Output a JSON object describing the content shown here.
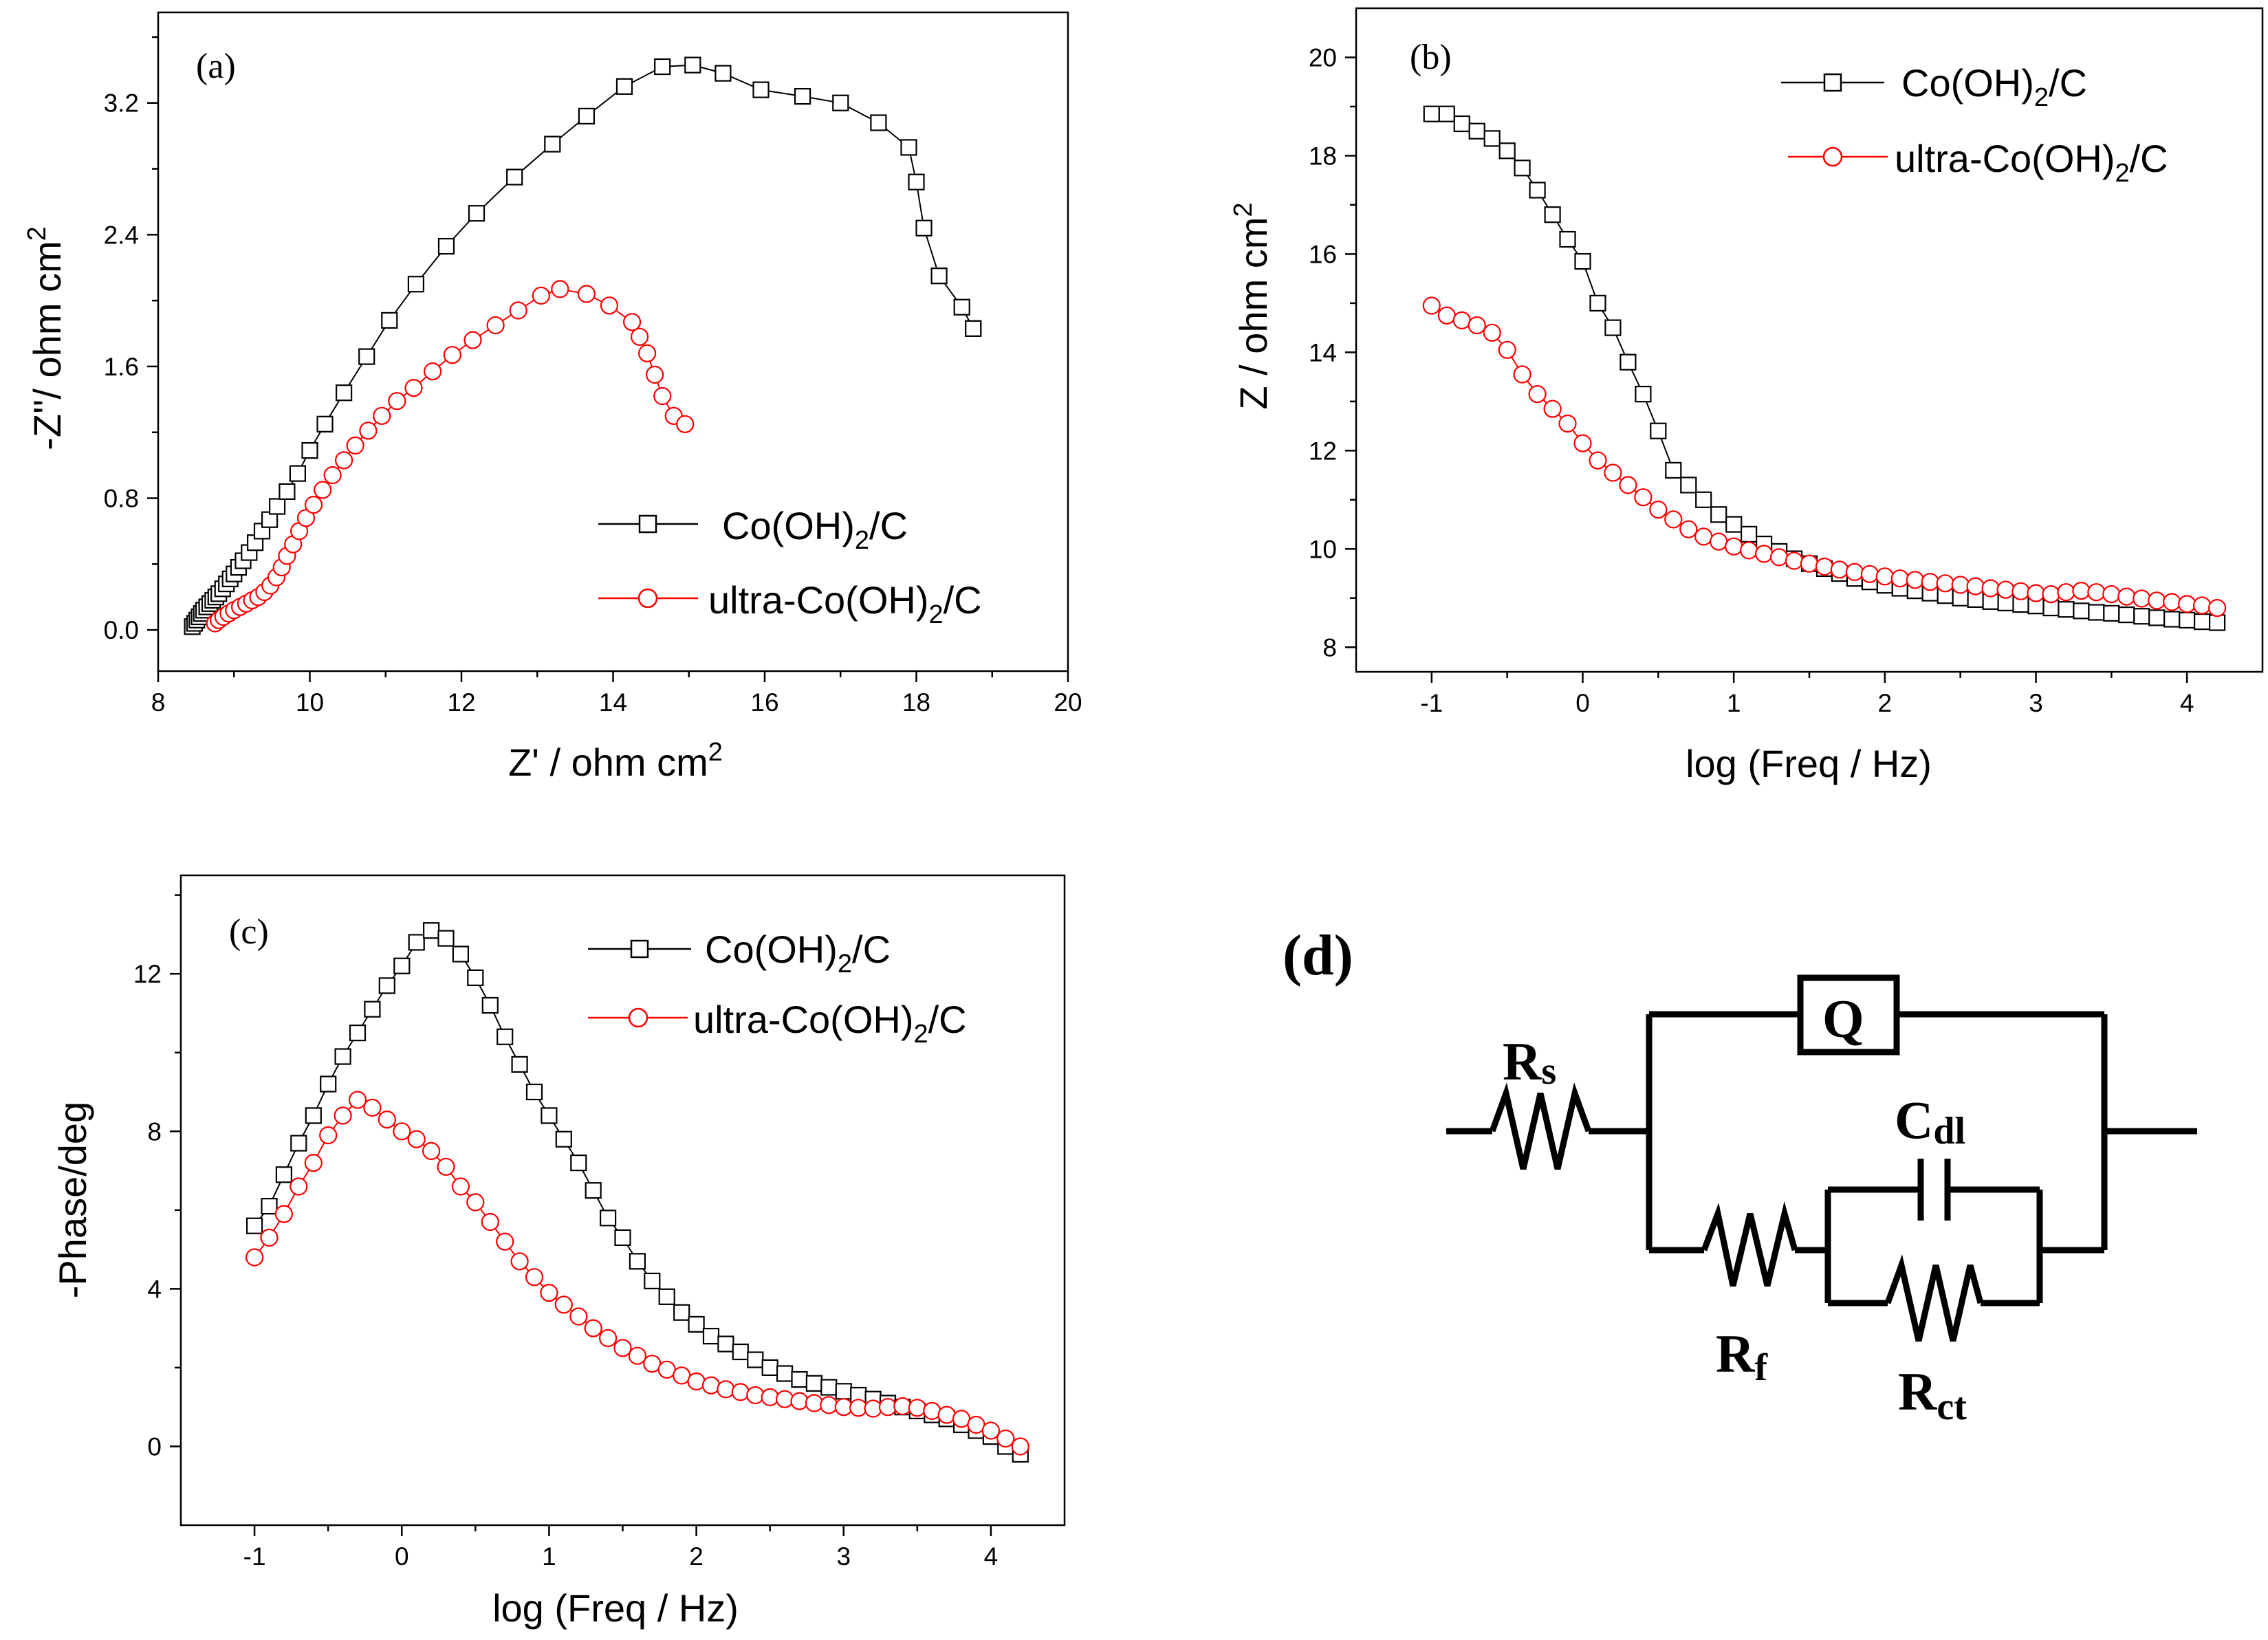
{
  "chart_data": [
    {
      "type": "scatter",
      "panel": "(a)",
      "xlabel": "Z' / ohm cm^2",
      "ylabel": "-Z''/ ohm cm^2",
      "xlim": [
        8,
        20
      ],
      "ylim": [
        -0.25,
        3.75
      ],
      "xticks": [
        8,
        10,
        12,
        14,
        16,
        18,
        20
      ],
      "yticks": [
        0.0,
        0.8,
        1.6,
        2.4,
        3.2
      ],
      "ytick_labels": [
        "0.0",
        "0.8",
        "1.6",
        "2.4",
        "3.2"
      ],
      "legend_position": "bottom-right",
      "series": [
        {
          "name": "Co(OH)2/C",
          "color": "#000000",
          "marker": "square",
          "x": [
            8.45,
            8.48,
            8.51,
            8.54,
            8.57,
            8.6,
            8.64,
            8.68,
            8.72,
            8.76,
            8.8,
            8.85,
            8.9,
            8.95,
            9.0,
            9.06,
            9.12,
            9.2,
            9.28,
            9.37,
            9.47,
            9.57,
            9.7,
            9.84,
            10.0,
            10.2,
            10.45,
            10.75,
            11.05,
            11.4,
            11.8,
            12.2,
            12.7,
            13.2,
            13.65,
            14.15,
            14.65,
            15.05,
            15.45,
            15.95,
            16.5,
            17.0,
            17.5,
            17.9,
            18.0,
            18.1,
            18.3,
            18.6,
            18.75,
            18.75
          ],
          "y": [
            0.02,
            0.04,
            0.06,
            0.08,
            0.1,
            0.12,
            0.14,
            0.16,
            0.18,
            0.2,
            0.22,
            0.25,
            0.28,
            0.31,
            0.34,
            0.38,
            0.42,
            0.47,
            0.53,
            0.6,
            0.67,
            0.75,
            0.84,
            0.95,
            1.09,
            1.25,
            1.44,
            1.66,
            1.88,
            2.1,
            2.33,
            2.53,
            2.75,
            2.95,
            3.12,
            3.3,
            3.42,
            3.43,
            3.38,
            3.28,
            3.24,
            3.2,
            3.08,
            2.93,
            2.72,
            2.44,
            2.15,
            1.96,
            1.83,
            1.83
          ]
        },
        {
          "name": "ultra-Co(OH)2/C",
          "color": "#ff0000",
          "marker": "circle",
          "x": [
            8.75,
            8.8,
            8.86,
            8.93,
            9.0,
            9.08,
            9.16,
            9.24,
            9.32,
            9.4,
            9.48,
            9.56,
            9.63,
            9.7,
            9.78,
            9.86,
            9.95,
            10.05,
            10.17,
            10.3,
            10.45,
            10.6,
            10.77,
            10.95,
            11.15,
            11.37,
            11.62,
            11.88,
            12.15,
            12.45,
            12.75,
            13.05,
            13.3,
            13.65,
            13.95,
            14.25,
            14.35,
            14.45,
            14.55,
            14.65,
            14.8,
            14.95
          ],
          "y": [
            0.04,
            0.06,
            0.08,
            0.1,
            0.12,
            0.14,
            0.16,
            0.18,
            0.2,
            0.23,
            0.27,
            0.32,
            0.38,
            0.45,
            0.52,
            0.6,
            0.68,
            0.76,
            0.85,
            0.94,
            1.03,
            1.12,
            1.21,
            1.3,
            1.39,
            1.47,
            1.57,
            1.67,
            1.76,
            1.85,
            1.94,
            2.03,
            2.07,
            2.04,
            1.97,
            1.87,
            1.78,
            1.68,
            1.55,
            1.42,
            1.3,
            1.25
          ]
        }
      ]
    },
    {
      "type": "scatter",
      "panel": "(b)",
      "xlabel": "log (Freq / Hz)",
      "ylabel": "Z / ohm cm^2",
      "xlim": [
        -1.5,
        4.5
      ],
      "ylim": [
        7.5,
        21
      ],
      "xticks": [
        -1,
        0,
        1,
        2,
        3,
        4
      ],
      "yticks": [
        8,
        10,
        12,
        14,
        16,
        18,
        20
      ],
      "legend_position": "top-right",
      "series": [
        {
          "name": "Co(OH)2/C",
          "color": "#000000",
          "marker": "square",
          "x": [
            -1.0,
            -0.9,
            -0.8,
            -0.7,
            -0.6,
            -0.5,
            -0.4,
            -0.3,
            -0.2,
            -0.1,
            0.0,
            0.1,
            0.2,
            0.3,
            0.4,
            0.5,
            0.6,
            0.7,
            0.8,
            0.9,
            1.0,
            1.1,
            1.2,
            1.3,
            1.4,
            1.5,
            1.6,
            1.7,
            1.8,
            1.9,
            2.0,
            2.1,
            2.2,
            2.3,
            2.4,
            2.5,
            2.6,
            2.7,
            2.8,
            2.9,
            3.0,
            3.1,
            3.2,
            3.3,
            3.4,
            3.5,
            3.6,
            3.7,
            3.8,
            3.9,
            4.0,
            4.1,
            4.2
          ],
          "y": [
            18.85,
            18.85,
            18.65,
            18.5,
            18.35,
            18.1,
            17.75,
            17.3,
            16.8,
            16.3,
            15.85,
            15.0,
            14.5,
            13.8,
            13.15,
            12.4,
            11.6,
            11.3,
            11.0,
            10.7,
            10.5,
            10.3,
            10.1,
            9.95,
            9.8,
            9.7,
            9.6,
            9.5,
            9.4,
            9.33,
            9.26,
            9.2,
            9.15,
            9.1,
            9.05,
            9.0,
            8.97,
            8.93,
            8.9,
            8.87,
            8.84,
            8.8,
            8.77,
            8.74,
            8.71,
            8.69,
            8.66,
            8.63,
            8.6,
            8.57,
            8.55,
            8.52,
            8.5
          ]
        },
        {
          "name": "ultra-Co(OH)2/C",
          "color": "#ff0000",
          "marker": "circle",
          "x": [
            -1.0,
            -0.9,
            -0.8,
            -0.7,
            -0.6,
            -0.5,
            -0.4,
            -0.3,
            -0.2,
            -0.1,
            0.0,
            0.1,
            0.2,
            0.3,
            0.4,
            0.5,
            0.6,
            0.7,
            0.8,
            0.9,
            1.0,
            1.1,
            1.2,
            1.3,
            1.4,
            1.5,
            1.6,
            1.7,
            1.8,
            1.9,
            2.0,
            2.1,
            2.2,
            2.3,
            2.4,
            2.5,
            2.6,
            2.7,
            2.8,
            2.9,
            3.0,
            3.1,
            3.2,
            3.3,
            3.4,
            3.5,
            3.6,
            3.7,
            3.8,
            3.9,
            4.0,
            4.1,
            4.2
          ],
          "y": [
            14.95,
            14.75,
            14.65,
            14.55,
            14.4,
            14.05,
            13.55,
            13.15,
            12.85,
            12.55,
            12.15,
            11.8,
            11.55,
            11.3,
            11.05,
            10.8,
            10.6,
            10.4,
            10.25,
            10.15,
            10.05,
            9.97,
            9.9,
            9.83,
            9.76,
            9.7,
            9.64,
            9.58,
            9.53,
            9.49,
            9.44,
            9.4,
            9.37,
            9.33,
            9.3,
            9.27,
            9.24,
            9.2,
            9.17,
            9.14,
            9.1,
            9.08,
            9.12,
            9.15,
            9.12,
            9.08,
            9.03,
            8.99,
            8.95,
            8.92,
            8.88,
            8.85,
            8.8
          ]
        }
      ]
    },
    {
      "type": "scatter",
      "panel": "(c)",
      "xlabel": "log (Freq / Hz)",
      "ylabel": "-Phase/deg",
      "xlim": [
        -1.5,
        4.5
      ],
      "ylim": [
        -2,
        14.5
      ],
      "xticks": [
        -1,
        0,
        1,
        2,
        3,
        4
      ],
      "yticks": [
        0,
        4,
        8,
        12
      ],
      "legend_position": "top-right",
      "series": [
        {
          "name": "Co(OH)2/C",
          "color": "#000000",
          "marker": "square",
          "x": [
            -1.0,
            -0.9,
            -0.8,
            -0.7,
            -0.6,
            -0.5,
            -0.4,
            -0.3,
            -0.2,
            -0.1,
            0.0,
            0.1,
            0.2,
            0.3,
            0.4,
            0.5,
            0.6,
            0.7,
            0.8,
            0.9,
            1.0,
            1.1,
            1.2,
            1.3,
            1.4,
            1.5,
            1.6,
            1.7,
            1.8,
            1.9,
            2.0,
            2.1,
            2.2,
            2.3,
            2.4,
            2.5,
            2.6,
            2.7,
            2.8,
            2.9,
            3.0,
            3.1,
            3.2,
            3.3,
            3.4,
            3.5,
            3.6,
            3.7,
            3.8,
            3.9,
            4.0,
            4.1,
            4.2
          ],
          "y": [
            5.6,
            6.1,
            6.9,
            7.7,
            8.4,
            9.2,
            9.9,
            10.5,
            11.1,
            11.7,
            12.2,
            12.8,
            13.1,
            12.9,
            12.5,
            11.9,
            11.2,
            10.4,
            9.7,
            9.0,
            8.4,
            7.8,
            7.2,
            6.5,
            5.8,
            5.3,
            4.7,
            4.2,
            3.8,
            3.4,
            3.1,
            2.8,
            2.6,
            2.4,
            2.2,
            2.0,
            1.85,
            1.7,
            1.6,
            1.5,
            1.4,
            1.3,
            1.2,
            1.1,
            1.0,
            0.9,
            0.8,
            0.7,
            0.55,
            0.4,
            0.25,
            0.0,
            -0.2
          ]
        },
        {
          "name": "ultra-Co(OH)2/C",
          "color": "#ff0000",
          "marker": "circle",
          "x": [
            -1.0,
            -0.9,
            -0.8,
            -0.7,
            -0.6,
            -0.5,
            -0.4,
            -0.3,
            -0.2,
            -0.1,
            0.0,
            0.1,
            0.2,
            0.3,
            0.4,
            0.5,
            0.6,
            0.7,
            0.8,
            0.9,
            1.0,
            1.1,
            1.2,
            1.3,
            1.4,
            1.5,
            1.6,
            1.7,
            1.8,
            1.9,
            2.0,
            2.1,
            2.2,
            2.3,
            2.4,
            2.5,
            2.6,
            2.7,
            2.8,
            2.9,
            3.0,
            3.1,
            3.2,
            3.3,
            3.4,
            3.5,
            3.6,
            3.7,
            3.8,
            3.9,
            4.0,
            4.1,
            4.2
          ],
          "y": [
            4.8,
            5.3,
            5.9,
            6.6,
            7.2,
            7.9,
            8.4,
            8.8,
            8.6,
            8.3,
            8.0,
            7.8,
            7.5,
            7.1,
            6.6,
            6.2,
            5.7,
            5.2,
            4.7,
            4.3,
            3.9,
            3.6,
            3.3,
            3.0,
            2.75,
            2.5,
            2.3,
            2.1,
            1.95,
            1.8,
            1.65,
            1.55,
            1.45,
            1.38,
            1.3,
            1.25,
            1.2,
            1.15,
            1.1,
            1.05,
            1.0,
            0.98,
            0.96,
            1.0,
            1.02,
            0.98,
            0.9,
            0.8,
            0.7,
            0.55,
            0.4,
            0.2,
            0.0
          ]
        }
      ]
    }
  ],
  "circuit": {
    "panel": "(d)",
    "rs_main": "R",
    "rs_sub": "s",
    "q_label": "Q",
    "cdl_main": "C",
    "cdl_sub": "dl",
    "rf_main": "R",
    "rf_sub": "f",
    "rct_main": "R",
    "rct_sub": "ct"
  },
  "legend": {
    "series1_main": "Co(OH)",
    "series1_sub": "2",
    "series1_tail": "/C",
    "series2_main": "ultra-Co(OH)",
    "series2_sub": "2",
    "series2_tail": "/C"
  },
  "axis_text": {
    "a_xlabel_main": "Z' / ohm cm",
    "a_xlabel_sup": "2",
    "a_ylabel_main": "-Z''/ ohm cm",
    "a_ylabel_sup": "2",
    "b_xlabel": "log (Freq / Hz)",
    "b_ylabel_main": "Z / ohm cm",
    "b_ylabel_sup": "2",
    "c_xlabel": "log (Freq / Hz)",
    "c_ylabel": "-Phase/deg"
  }
}
